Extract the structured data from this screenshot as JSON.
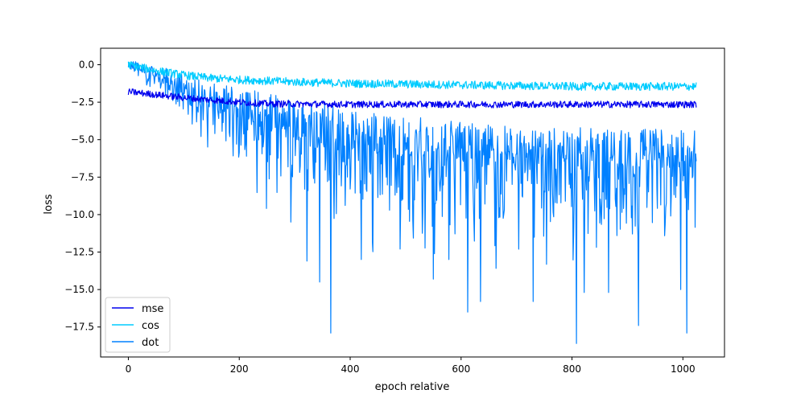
{
  "chart_data": {
    "type": "line",
    "title": "",
    "xlabel": "epoch relative",
    "ylabel": "loss",
    "xlim": [
      -50,
      1075
    ],
    "ylim": [
      -19.5,
      1.1
    ],
    "x_ticks": [
      0,
      200,
      400,
      600,
      800,
      1000
    ],
    "x_tick_labels": [
      "0",
      "200",
      "400",
      "600",
      "800",
      "1000"
    ],
    "y_ticks": [
      0.0,
      -2.5,
      -5.0,
      -7.5,
      -10.0,
      -12.5,
      -15.0,
      -17.5
    ],
    "y_tick_labels": [
      "0.0",
      "−2.5",
      "−5.0",
      "−7.5",
      "−10.0",
      "−12.5",
      "−15.0",
      "−17.5"
    ],
    "grid": false,
    "legend_position": "lower-left",
    "series": [
      {
        "name": "mse",
        "color": "#0000ee",
        "x": [
          0,
          50,
          100,
          150,
          200,
          250,
          300,
          400,
          500,
          600,
          700,
          800,
          900,
          1000,
          1024
        ],
        "values": [
          -1.8,
          -2.0,
          -2.2,
          -2.35,
          -2.5,
          -2.6,
          -2.62,
          -2.65,
          -2.65,
          -2.65,
          -2.65,
          -2.65,
          -2.65,
          -2.65,
          -2.65
        ]
      },
      {
        "name": "cos",
        "color": "#00ccff",
        "x": [
          0,
          50,
          100,
          150,
          200,
          300,
          400,
          500,
          600,
          700,
          800,
          900,
          1000,
          1024
        ],
        "values": [
          0.0,
          -0.4,
          -0.7,
          -0.9,
          -1.0,
          -1.15,
          -1.25,
          -1.3,
          -1.35,
          -1.4,
          -1.45,
          -1.45,
          -1.45,
          -1.45
        ]
      },
      {
        "name": "dot",
        "color": "#0080ff",
        "x": [
          0,
          50,
          100,
          150,
          200,
          250,
          300,
          350,
          400,
          450,
          500,
          550,
          600,
          650,
          700,
          750,
          800,
          850,
          900,
          950,
          1000,
          1024
        ],
        "values": [
          0.0,
          -0.6,
          -1.3,
          -2.0,
          -2.6,
          -3.1,
          -3.6,
          -4.0,
          -4.3,
          -4.6,
          -4.8,
          -5.0,
          -5.2,
          -5.3,
          -5.4,
          -5.5,
          -5.6,
          -5.6,
          -5.7,
          -5.7,
          -5.7,
          -5.7
        ],
        "spike_minima": [
          {
            "x": 293,
            "y": -10.5
          },
          {
            "x": 322,
            "y": -13.1
          },
          {
            "x": 345,
            "y": -14.5
          },
          {
            "x": 365,
            "y": -17.9
          },
          {
            "x": 420,
            "y": -13.0
          },
          {
            "x": 490,
            "y": -12.3
          },
          {
            "x": 550,
            "y": -14.3
          },
          {
            "x": 578,
            "y": -13.0
          },
          {
            "x": 612,
            "y": -16.5
          },
          {
            "x": 635,
            "y": -15.8
          },
          {
            "x": 730,
            "y": -15.8
          },
          {
            "x": 808,
            "y": -18.6
          },
          {
            "x": 822,
            "y": -15.2
          },
          {
            "x": 866,
            "y": -15.2
          },
          {
            "x": 920,
            "y": -17.4
          },
          {
            "x": 996,
            "y": -15.0
          },
          {
            "x": 1007,
            "y": -17.9
          }
        ]
      }
    ]
  }
}
